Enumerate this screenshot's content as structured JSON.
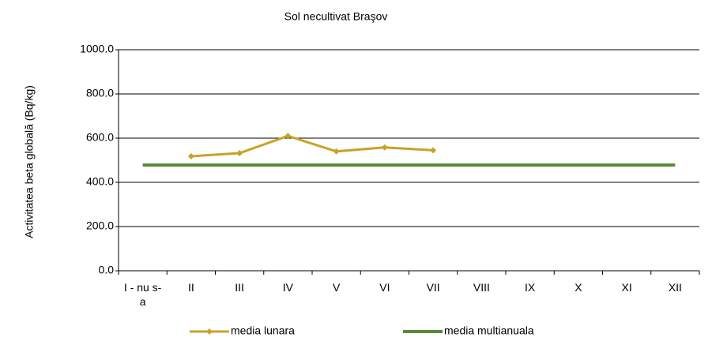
{
  "chart_data": {
    "type": "line",
    "title": "Sol necultivat Braşov",
    "ylabel": "Activitatea beta globală (Bq/kg)",
    "categories": [
      "I - nu s- a",
      "II",
      "III",
      "IV",
      "V",
      "VI",
      "VII",
      "VIII",
      "IX",
      "X",
      "XI",
      "XII"
    ],
    "series": [
      {
        "name": "media lunara",
        "color": "#c9a227",
        "values": [
          null,
          518,
          532,
          610,
          540,
          558,
          545,
          null,
          null,
          null,
          null,
          null
        ]
      },
      {
        "name": "media multianuala",
        "color": "#5a8a3a",
        "values": [
          478,
          478,
          478,
          478,
          478,
          478,
          478,
          478,
          478,
          478,
          478,
          478
        ]
      }
    ],
    "ylim": [
      0,
      1000
    ],
    "yticks": [
      {
        "value": 0,
        "label": "0.0"
      },
      {
        "value": 200,
        "label": "200.0"
      },
      {
        "value": 400,
        "label": "400.0"
      },
      {
        "value": 600,
        "label": "600.0"
      },
      {
        "value": 800,
        "label": "800.0"
      },
      {
        "value": 1000,
        "label": "1000.0"
      }
    ],
    "grid": true,
    "legend": "bottom"
  }
}
